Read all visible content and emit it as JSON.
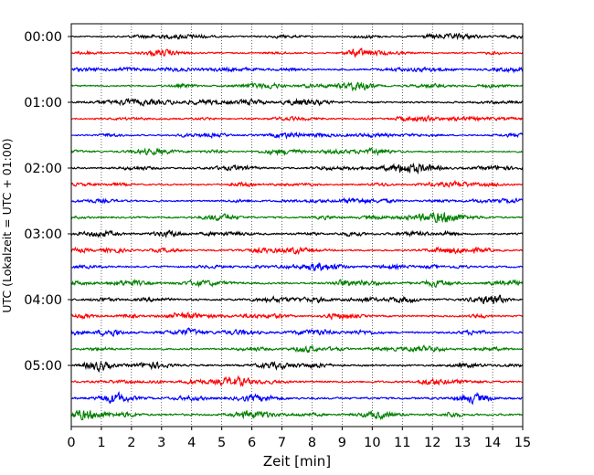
{
  "chart_data": {
    "type": "line",
    "title": "",
    "xlabel": "Zeit  [min]",
    "ylabel": "UTC (Lokalzeit = UTC + 01:00)",
    "xlim": [
      0,
      15
    ],
    "x_ticks": [
      "0",
      "1",
      "2",
      "3",
      "4",
      "5",
      "6",
      "7",
      "8",
      "9",
      "10",
      "11",
      "12",
      "13",
      "14",
      "15"
    ],
    "y_tick_labels": [
      "00:00",
      "01:00",
      "02:00",
      "03:00",
      "04:00",
      "05:00"
    ],
    "row_interval_min": 15,
    "grid": "vertical dotted at every minute",
    "legend": "none",
    "series": [
      {
        "start": "00:00",
        "color": "#000000",
        "amplitude": 0.45
      },
      {
        "start": "00:15",
        "color": "#ff0000",
        "amplitude": 0.45
      },
      {
        "start": "00:30",
        "color": "#0000ff",
        "amplitude": 0.55
      },
      {
        "start": "00:45",
        "color": "#008000",
        "amplitude": 0.5
      },
      {
        "start": "01:00",
        "color": "#000000",
        "amplitude": 0.55
      },
      {
        "start": "01:15",
        "color": "#ff0000",
        "amplitude": 0.5
      },
      {
        "start": "01:30",
        "color": "#0000ff",
        "amplitude": 0.45
      },
      {
        "start": "01:45",
        "color": "#008000",
        "amplitude": 0.5
      },
      {
        "start": "02:00",
        "color": "#000000",
        "amplitude": 0.55
      },
      {
        "start": "02:15",
        "color": "#ff0000",
        "amplitude": 0.5
      },
      {
        "start": "02:30",
        "color": "#0000ff",
        "amplitude": 0.5
      },
      {
        "start": "02:45",
        "color": "#008000",
        "amplitude": 0.55
      },
      {
        "start": "03:00",
        "color": "#000000",
        "amplitude": 0.6
      },
      {
        "start": "03:15",
        "color": "#ff0000",
        "amplitude": 0.55
      },
      {
        "start": "03:30",
        "color": "#0000ff",
        "amplitude": 0.55
      },
      {
        "start": "03:45",
        "color": "#008000",
        "amplitude": 0.6
      },
      {
        "start": "04:00",
        "color": "#000000",
        "amplitude": 0.6
      },
      {
        "start": "04:15",
        "color": "#ff0000",
        "amplitude": 0.55
      },
      {
        "start": "04:30",
        "color": "#0000ff",
        "amplitude": 0.6
      },
      {
        "start": "04:45",
        "color": "#008000",
        "amplitude": 0.55
      },
      {
        "start": "05:00",
        "color": "#000000",
        "amplitude": 0.55
      },
      {
        "start": "05:15",
        "color": "#ff0000",
        "amplitude": 0.6
      },
      {
        "start": "05:30",
        "color": "#0000ff",
        "amplitude": 0.65
      },
      {
        "start": "05:45",
        "color": "#008000",
        "amplitude": 0.65
      }
    ]
  }
}
